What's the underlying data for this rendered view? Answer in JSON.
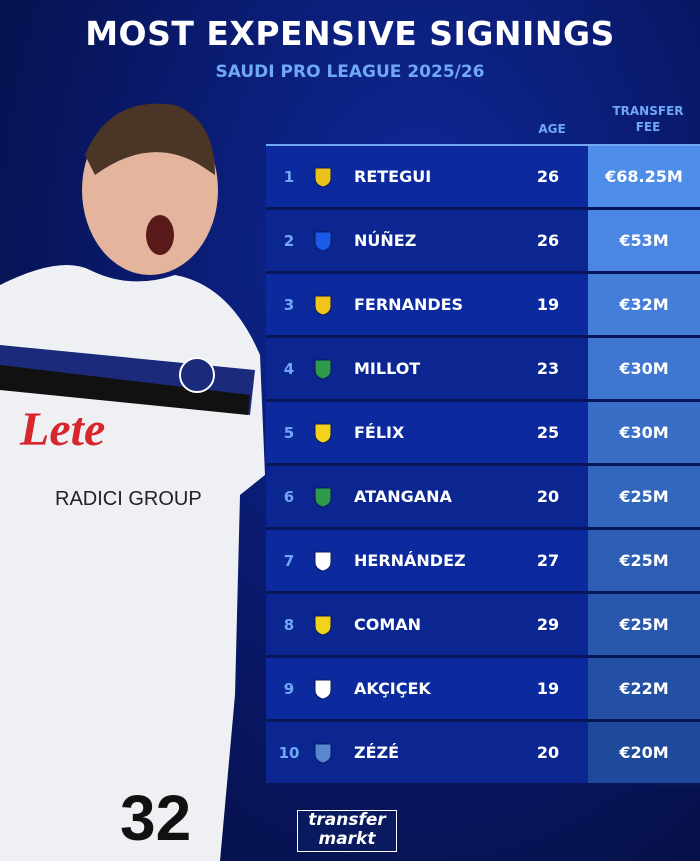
{
  "header": {
    "title": "MOST EXPENSIVE SIGNINGS",
    "subtitle": "SAUDI PRO LEAGUE 2025/26"
  },
  "columns": {
    "age": "AGE",
    "fee_line1": "TRANSFER",
    "fee_line2": "FEE"
  },
  "rows": [
    {
      "rank": "1",
      "name": "RETEGUI",
      "age": "26",
      "fee": "€68.25M",
      "club_color": "#e8c31a",
      "fee_color": "#4f8ee8"
    },
    {
      "rank": "2",
      "name": "NÚÑEZ",
      "age": "26",
      "fee": "€53M",
      "club_color": "#1a5ae8",
      "fee_color": "#4a86e2"
    },
    {
      "rank": "3",
      "name": "FERNANDES",
      "age": "19",
      "fee": "€32M",
      "club_color": "#f0c419",
      "fee_color": "#457ed9"
    },
    {
      "rank": "4",
      "name": "MILLOT",
      "age": "23",
      "fee": "€30M",
      "club_color": "#2e9a4a",
      "fee_color": "#3f76d0"
    },
    {
      "rank": "5",
      "name": "FÉLIX",
      "age": "25",
      "fee": "€30M",
      "club_color": "#f2d21b",
      "fee_color": "#396ec6"
    },
    {
      "rank": "6",
      "name": "ATANGANA",
      "age": "20",
      "fee": "€25M",
      "club_color": "#2e9a4a",
      "fee_color": "#3366bd"
    },
    {
      "rank": "7",
      "name": "HERNÁNDEZ",
      "age": "27",
      "fee": "€25M",
      "club_color": "#ffffff",
      "fee_color": "#2e5eb4"
    },
    {
      "rank": "8",
      "name": "COMAN",
      "age": "29",
      "fee": "€25M",
      "club_color": "#f2d21b",
      "fee_color": "#2957ab"
    },
    {
      "rank": "9",
      "name": "AKÇIÇEK",
      "age": "19",
      "fee": "€22M",
      "club_color": "#ffffff",
      "fee_color": "#2450a3"
    },
    {
      "rank": "10",
      "name": "ZÉZÉ",
      "age": "20",
      "fee": "€20M",
      "club_color": "#5a88d0",
      "fee_color": "#1f4a9b"
    }
  ],
  "player": {
    "shirt_number": "32",
    "sponsor": "Lete",
    "sponsor2": "RADICI GROUP"
  },
  "brand": {
    "line1": "transfer",
    "line2": "markt"
  }
}
